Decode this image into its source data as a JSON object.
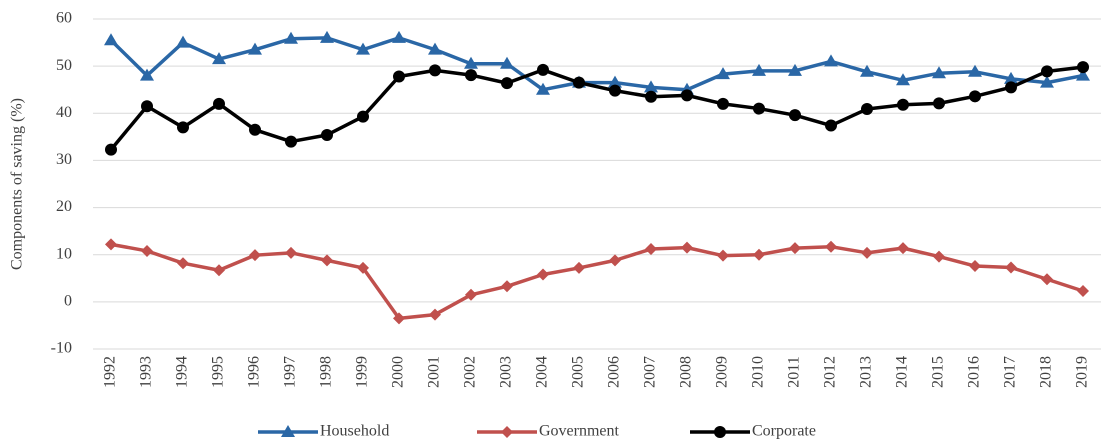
{
  "chart_data": {
    "type": "line",
    "y_label": "Components of saving (%)",
    "categories": [
      "1992",
      "1993",
      "1994",
      "1995",
      "1996",
      "1997",
      "1998",
      "1999",
      "2000",
      "2001",
      "2002",
      "2003",
      "2004",
      "2005",
      "2006",
      "2007",
      "2008",
      "2009",
      "2010",
      "2011",
      "2012",
      "2013",
      "2014",
      "2015",
      "2016",
      "2017",
      "2018",
      "2019"
    ],
    "series": [
      {
        "name": "Household",
        "color": "#2a67a6",
        "marker": "triangle",
        "values": [
          55.5,
          48,
          55,
          51.5,
          53.5,
          55.8,
          56,
          53.5,
          56,
          53.5,
          50.5,
          50.5,
          45,
          46.5,
          46.5,
          45.5,
          45,
          48.3,
          49,
          49,
          51,
          48.8,
          47,
          48.5,
          48.8,
          47.3,
          46.5,
          48
        ]
      },
      {
        "name": "Government",
        "color": "#c0504d",
        "marker": "diamond",
        "values": [
          12.2,
          10.8,
          8.2,
          6.7,
          9.9,
          10.4,
          8.8,
          7.2,
          -3.5,
          -2.7,
          1.5,
          3.3,
          5.8,
          7.2,
          8.8,
          11.2,
          11.5,
          9.8,
          10,
          11.4,
          11.7,
          10.4,
          11.4,
          9.6,
          7.6,
          7.3,
          4.8,
          2.3
        ]
      },
      {
        "name": "Corporate",
        "color": "#000000",
        "marker": "circle",
        "values": [
          32.3,
          41.5,
          37,
          42,
          36.5,
          34,
          35.4,
          39.3,
          47.8,
          49.1,
          48.1,
          46.4,
          49.2,
          46.5,
          44.8,
          43.5,
          43.8,
          42,
          41,
          39.6,
          37.4,
          40.9,
          41.8,
          42.1,
          43.6,
          45.5,
          48.9,
          49.8
        ]
      }
    ],
    "ylim": [
      -10,
      60
    ],
    "yticks": [
      -10,
      0,
      10,
      20,
      30,
      40,
      50,
      60
    ],
    "grid": true,
    "legend": "bottom"
  }
}
